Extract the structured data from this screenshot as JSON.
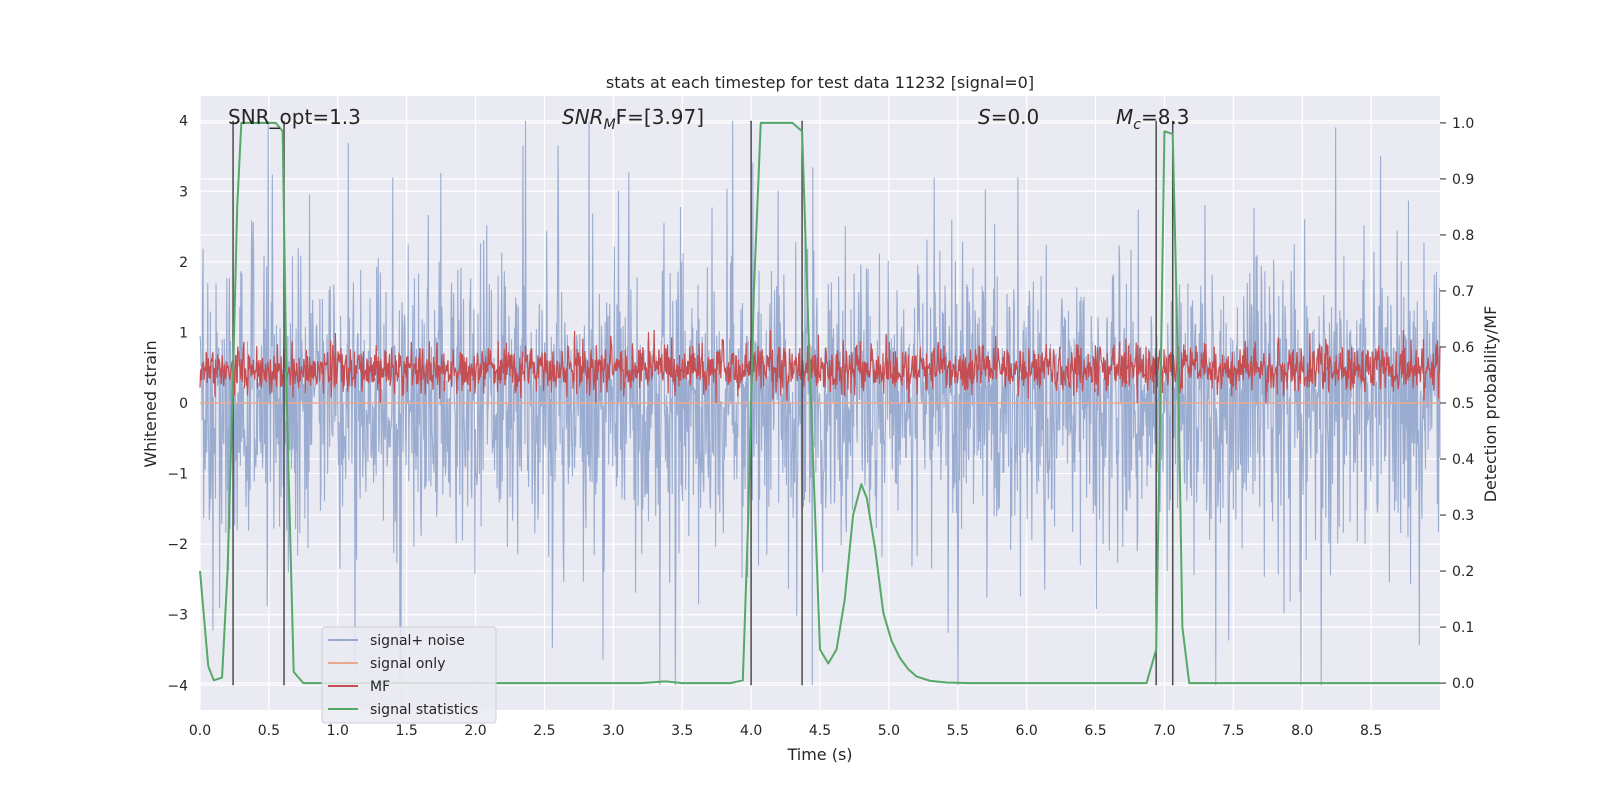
{
  "colors": {
    "background": "#ffffff",
    "axes_face": "#eaeaf2",
    "grid": "#ffffff",
    "noise": "#97a9cf",
    "signal_only": "#e8a98f",
    "mf": "#c44e52",
    "stats": "#55a868",
    "vline": "#4d4d4d",
    "text": "#262626"
  },
  "chart_data": {
    "type": "line",
    "title": "stats at each timestep for test data 11232 [signal=0]",
    "xlabel": "Time (s)",
    "ylabel": "Whitened strain",
    "y2label": "Detection probability/MF",
    "xlim": [
      0,
      9.0
    ],
    "ylim": [
      -4.35,
      4.35
    ],
    "y2lim": [
      -0.048,
      1.048
    ],
    "x_ticks": [
      0.0,
      0.5,
      1.0,
      1.5,
      2.0,
      2.5,
      3.0,
      3.5,
      4.0,
      4.5,
      5.0,
      5.5,
      6.0,
      6.5,
      7.0,
      7.5,
      8.0,
      8.5
    ],
    "x_tick_labels": [
      "0.0",
      "0.5",
      "1.0",
      "1.5",
      "2.0",
      "2.5",
      "3.0",
      "3.5",
      "4.0",
      "4.5",
      "5.0",
      "5.5",
      "6.0",
      "6.5",
      "7.0",
      "7.5",
      "8.0",
      "8.5"
    ],
    "y_ticks": [
      -4,
      -3,
      -2,
      -1,
      0,
      1,
      2,
      3,
      4
    ],
    "y_tick_labels": [
      "−4",
      "−3",
      "−2",
      "−1",
      "0",
      "1",
      "2",
      "3",
      "4"
    ],
    "y2_ticks": [
      0.0,
      0.1,
      0.2,
      0.3,
      0.4,
      0.5,
      0.6,
      0.7,
      0.8,
      0.9,
      1.0
    ],
    "y2_tick_labels": [
      "0.0",
      "0.1",
      "0.2",
      "0.3",
      "0.4",
      "0.5",
      "0.6",
      "0.7",
      "0.8",
      "0.9",
      "1.0"
    ],
    "grid": true,
    "legend_position": "lower-left",
    "annotations": {
      "snr_opt": "SNR_opt=1.3",
      "snr_mf_main": "SNR",
      "snr_mf_sub": "M",
      "snr_mf_rest": "F=[3.97]",
      "s_main": "S",
      "s_rest": "=0.0",
      "mc_main": "M",
      "mc_sub": "c",
      "mc_rest": "=8.3"
    },
    "vertical_lines_x": [
      0.24,
      0.61,
      4.0,
      4.37,
      6.94,
      7.06
    ],
    "vertical_lines_ylim": [
      -4,
      4
    ],
    "series": [
      {
        "name": "signal+ noise",
        "axis": "left",
        "kind": "noise",
        "summary": {
          "typical_abs_max": 1.6,
          "peak_positive": 4.0,
          "peak_negative": -4.0
        }
      },
      {
        "name": "signal only",
        "axis": "left",
        "kind": "flat",
        "summary": {
          "value": 0.0
        }
      },
      {
        "name": "MF",
        "axis": "right",
        "kind": "band",
        "summary": {
          "center": 0.56,
          "min": 0.5,
          "max": 0.63
        }
      },
      {
        "name": "signal statistics",
        "axis": "right",
        "x": [
          0.0,
          0.06,
          0.1,
          0.16,
          0.2,
          0.24,
          0.27,
          0.3,
          0.55,
          0.6,
          0.63,
          0.68,
          0.75,
          0.9,
          3.2,
          3.38,
          3.5,
          3.85,
          3.94,
          3.98,
          4.02,
          4.07,
          4.1,
          4.3,
          4.37,
          4.42,
          4.5,
          4.56,
          4.62,
          4.68,
          4.74,
          4.8,
          4.84,
          4.9,
          4.96,
          5.02,
          5.08,
          5.14,
          5.2,
          5.3,
          5.42,
          5.6,
          6.87,
          6.94,
          6.97,
          7.0,
          7.06,
          7.1,
          7.13,
          7.18,
          7.3,
          9.0
        ],
        "y": [
          0.2,
          0.03,
          0.005,
          0.01,
          0.2,
          0.55,
          0.85,
          1.0,
          1.0,
          0.985,
          0.5,
          0.02,
          0.0,
          0.0,
          0.0,
          0.003,
          0.0,
          0.0,
          0.005,
          0.3,
          0.7,
          1.0,
          1.0,
          1.0,
          0.985,
          0.6,
          0.06,
          0.035,
          0.06,
          0.15,
          0.3,
          0.355,
          0.33,
          0.24,
          0.125,
          0.075,
          0.045,
          0.025,
          0.012,
          0.004,
          0.001,
          0.0,
          0.0,
          0.06,
          0.5,
          0.985,
          0.98,
          0.55,
          0.1,
          0.0,
          0.0,
          0.0
        ]
      }
    ]
  }
}
